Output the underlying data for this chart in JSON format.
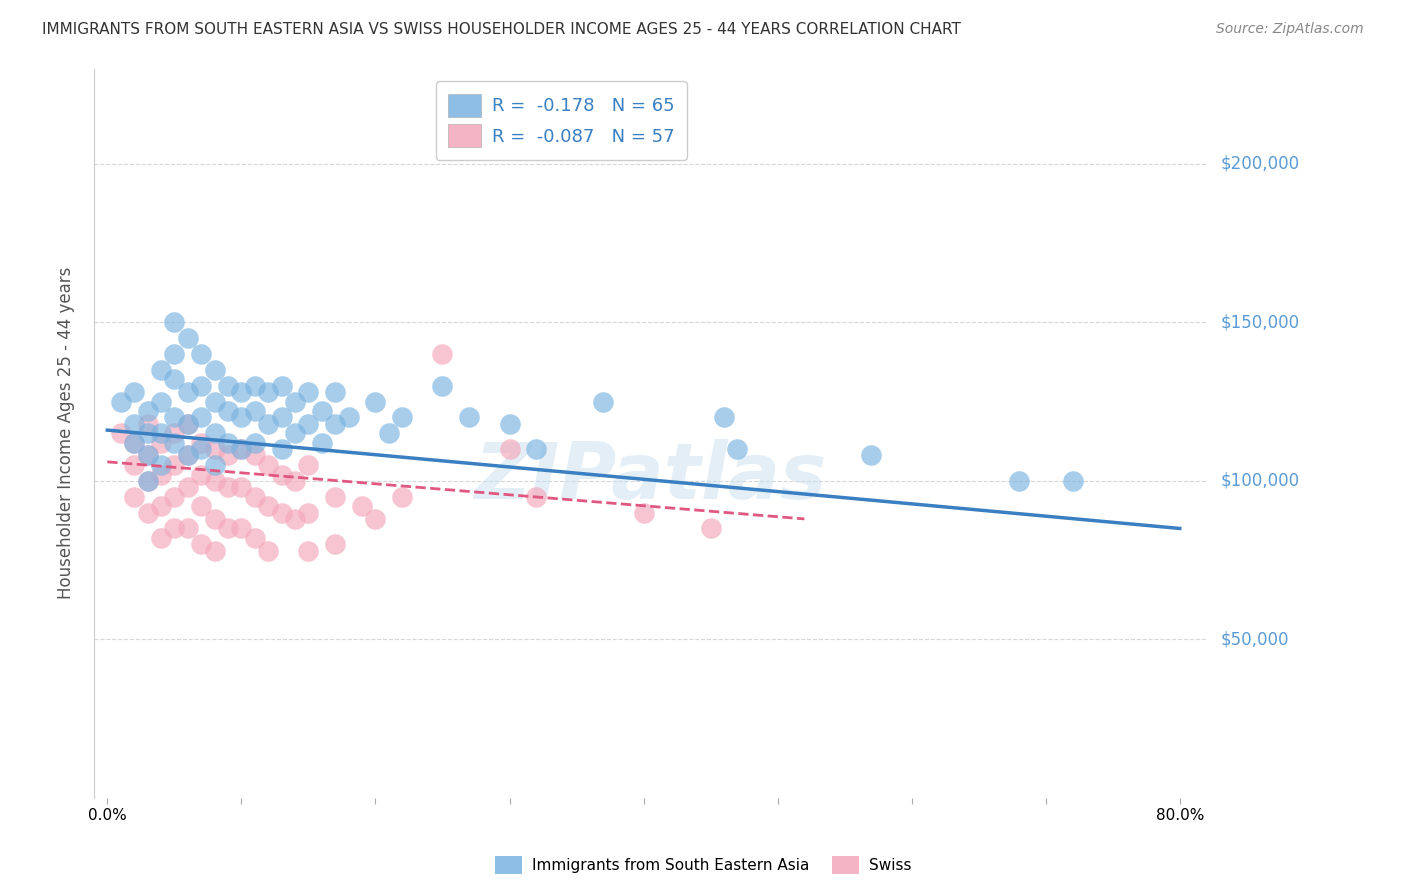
{
  "title": "IMMIGRANTS FROM SOUTH EASTERN ASIA VS SWISS HOUSEHOLDER INCOME AGES 25 - 44 YEARS CORRELATION CHART",
  "source": "Source: ZipAtlas.com",
  "ylabel": "Householder Income Ages 25 - 44 years",
  "y_ticks": [
    0,
    50000,
    100000,
    150000,
    200000
  ],
  "y_tick_labels": [
    "",
    "$50,000",
    "$100,000",
    "$150,000",
    "$200,000"
  ],
  "x_ticks": [
    0.0,
    0.1,
    0.2,
    0.3,
    0.4,
    0.5,
    0.6,
    0.7,
    0.8
  ],
  "x_tick_labels": [
    "0.0%",
    "",
    "",
    "",
    "",
    "",
    "",
    "",
    "80.0%"
  ],
  "xlim": [
    -0.01,
    0.82
  ],
  "ylim": [
    0,
    230000
  ],
  "watermark": "ZIPatlas",
  "blue_color": "#7ab3e0",
  "pink_color": "#f4a7b9",
  "blue_line_color": "#3a7fc1",
  "pink_line_color": "#e05880",
  "title_color": "#333333",
  "right_label_color": "#5b9bd5",
  "legend_text_color": "#3a7fc1",
  "blue_R": -0.178,
  "pink_R": -0.087,
  "blue_N": 65,
  "pink_N": 57,
  "blue_scatter": [
    [
      0.01,
      125000
    ],
    [
      0.02,
      128000
    ],
    [
      0.02,
      118000
    ],
    [
      0.02,
      112000
    ],
    [
      0.03,
      122000
    ],
    [
      0.03,
      115000
    ],
    [
      0.03,
      108000
    ],
    [
      0.03,
      100000
    ],
    [
      0.04,
      135000
    ],
    [
      0.04,
      125000
    ],
    [
      0.04,
      115000
    ],
    [
      0.04,
      105000
    ],
    [
      0.05,
      150000
    ],
    [
      0.05,
      140000
    ],
    [
      0.05,
      132000
    ],
    [
      0.05,
      120000
    ],
    [
      0.05,
      112000
    ],
    [
      0.06,
      145000
    ],
    [
      0.06,
      128000
    ],
    [
      0.06,
      118000
    ],
    [
      0.06,
      108000
    ],
    [
      0.07,
      140000
    ],
    [
      0.07,
      130000
    ],
    [
      0.07,
      120000
    ],
    [
      0.07,
      110000
    ],
    [
      0.08,
      135000
    ],
    [
      0.08,
      125000
    ],
    [
      0.08,
      115000
    ],
    [
      0.08,
      105000
    ],
    [
      0.09,
      130000
    ],
    [
      0.09,
      122000
    ],
    [
      0.09,
      112000
    ],
    [
      0.1,
      128000
    ],
    [
      0.1,
      120000
    ],
    [
      0.1,
      110000
    ],
    [
      0.11,
      130000
    ],
    [
      0.11,
      122000
    ],
    [
      0.11,
      112000
    ],
    [
      0.12,
      128000
    ],
    [
      0.12,
      118000
    ],
    [
      0.13,
      130000
    ],
    [
      0.13,
      120000
    ],
    [
      0.13,
      110000
    ],
    [
      0.14,
      125000
    ],
    [
      0.14,
      115000
    ],
    [
      0.15,
      128000
    ],
    [
      0.15,
      118000
    ],
    [
      0.16,
      122000
    ],
    [
      0.16,
      112000
    ],
    [
      0.17,
      128000
    ],
    [
      0.17,
      118000
    ],
    [
      0.18,
      120000
    ],
    [
      0.2,
      125000
    ],
    [
      0.21,
      115000
    ],
    [
      0.22,
      120000
    ],
    [
      0.25,
      130000
    ],
    [
      0.27,
      120000
    ],
    [
      0.3,
      118000
    ],
    [
      0.32,
      110000
    ],
    [
      0.37,
      125000
    ],
    [
      0.46,
      120000
    ],
    [
      0.47,
      110000
    ],
    [
      0.57,
      108000
    ],
    [
      0.68,
      100000
    ],
    [
      0.72,
      100000
    ]
  ],
  "pink_scatter": [
    [
      0.01,
      115000
    ],
    [
      0.02,
      112000
    ],
    [
      0.02,
      105000
    ],
    [
      0.02,
      95000
    ],
    [
      0.03,
      118000
    ],
    [
      0.03,
      108000
    ],
    [
      0.03,
      100000
    ],
    [
      0.03,
      90000
    ],
    [
      0.04,
      112000
    ],
    [
      0.04,
      102000
    ],
    [
      0.04,
      92000
    ],
    [
      0.04,
      82000
    ],
    [
      0.05,
      115000
    ],
    [
      0.05,
      105000
    ],
    [
      0.05,
      95000
    ],
    [
      0.05,
      85000
    ],
    [
      0.06,
      118000
    ],
    [
      0.06,
      108000
    ],
    [
      0.06,
      98000
    ],
    [
      0.06,
      85000
    ],
    [
      0.07,
      112000
    ],
    [
      0.07,
      102000
    ],
    [
      0.07,
      92000
    ],
    [
      0.07,
      80000
    ],
    [
      0.08,
      110000
    ],
    [
      0.08,
      100000
    ],
    [
      0.08,
      88000
    ],
    [
      0.08,
      78000
    ],
    [
      0.09,
      108000
    ],
    [
      0.09,
      98000
    ],
    [
      0.09,
      85000
    ],
    [
      0.1,
      110000
    ],
    [
      0.1,
      98000
    ],
    [
      0.1,
      85000
    ],
    [
      0.11,
      108000
    ],
    [
      0.11,
      95000
    ],
    [
      0.11,
      82000
    ],
    [
      0.12,
      105000
    ],
    [
      0.12,
      92000
    ],
    [
      0.12,
      78000
    ],
    [
      0.13,
      102000
    ],
    [
      0.13,
      90000
    ],
    [
      0.14,
      100000
    ],
    [
      0.14,
      88000
    ],
    [
      0.15,
      105000
    ],
    [
      0.15,
      90000
    ],
    [
      0.15,
      78000
    ],
    [
      0.17,
      95000
    ],
    [
      0.17,
      80000
    ],
    [
      0.19,
      92000
    ],
    [
      0.2,
      88000
    ],
    [
      0.22,
      95000
    ],
    [
      0.25,
      140000
    ],
    [
      0.3,
      110000
    ],
    [
      0.32,
      95000
    ],
    [
      0.4,
      90000
    ],
    [
      0.45,
      85000
    ]
  ]
}
